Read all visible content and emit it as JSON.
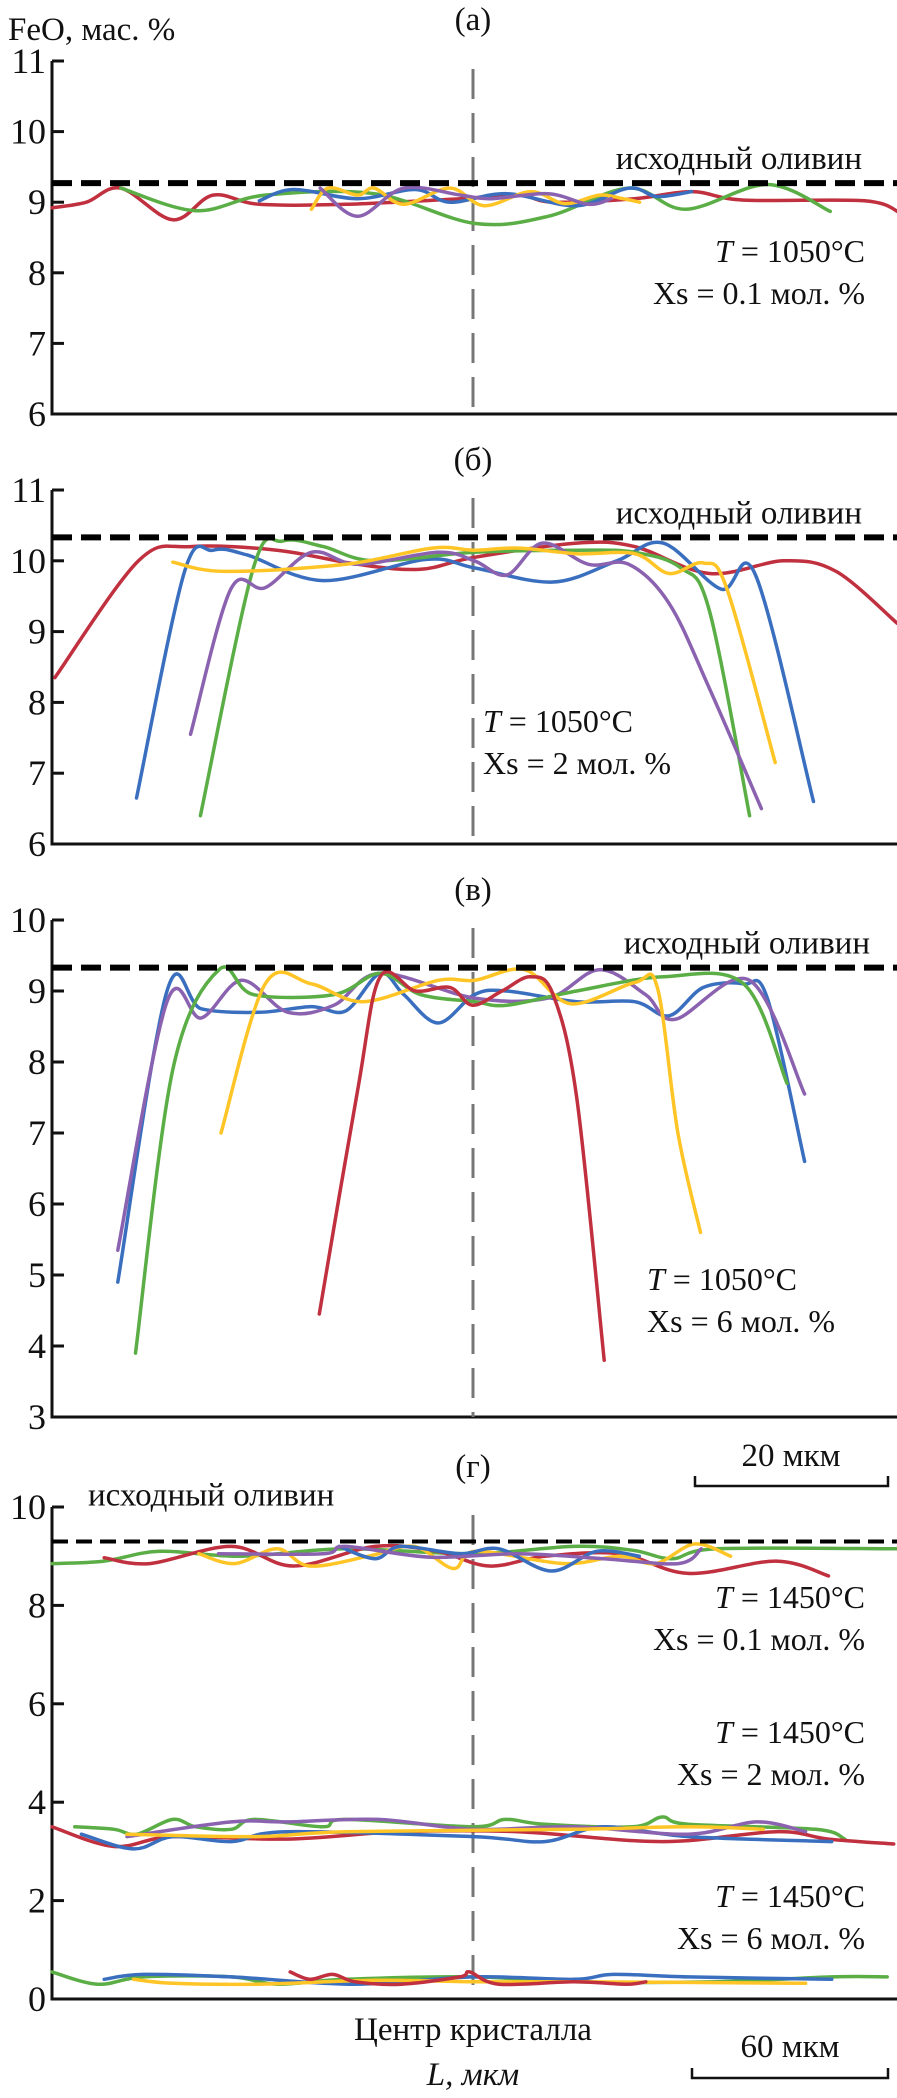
{
  "figure": {
    "ylabel": "FeO, мас. %",
    "center_label": "Центр кристалла",
    "xlabel": "L, мкм",
    "scale_bar_abc": "20 мкм",
    "scale_bar_d": "60 мкм"
  },
  "chart_data": [
    {
      "type": "line",
      "panel": "(а)",
      "ylim": [
        6,
        11
      ],
      "yticks": [
        "6",
        "7",
        "8",
        "9",
        "10",
        "11"
      ],
      "xlim": [
        -43,
        43
      ],
      "x_unit": "мкм",
      "reference": {
        "value": 9.27,
        "label": "исходный оливин"
      },
      "annotations": [
        {
          "t_symbol": "T",
          "t_value": " = 1050°C",
          "xs": "Xs = 0.1 мол. %"
        }
      ],
      "series": [
        {
          "name": "red",
          "color": "#c0303f",
          "x": [
            -43,
            -39.5,
            -36,
            -30.7,
            -26.6,
            -21.9,
            -13.1,
            -1.4,
            4.5,
            8.0,
            16.3,
            22.1,
            27.4,
            39.7,
            43.3
          ],
          "y": [
            8.92,
            9.0,
            9.2,
            8.75,
            9.1,
            8.97,
            8.97,
            9.05,
            9.1,
            9.0,
            9.05,
            9.15,
            9.03,
            9.02,
            8.85
          ]
        },
        {
          "name": "green",
          "color": "#5aae45",
          "x": [
            -36,
            -28.4,
            -21.3,
            -10.2,
            0,
            7.5,
            15.7,
            21.5,
            29.8,
            36.2
          ],
          "y": [
            9.2,
            8.88,
            9.1,
            9.12,
            8.7,
            8.8,
            9.2,
            8.9,
            9.25,
            8.87
          ]
        },
        {
          "name": "blue",
          "color": "#3a6fbf",
          "x": [
            -21.9,
            -18.4,
            -11.9,
            -6.0,
            -2.5,
            3.3,
            10.4,
            15.7,
            18.6,
            22.1
          ],
          "y": [
            9.02,
            9.18,
            9.05,
            9.18,
            9.0,
            9.12,
            8.95,
            9.2,
            9.08,
            9.15
          ]
        },
        {
          "name": "yellow",
          "color": "#ffc425",
          "x": [
            -16.6,
            -14.9,
            -11.9,
            -10.2,
            -7.2,
            -2.5,
            1.0,
            5.7,
            9.2,
            12.7,
            15.1,
            16.8
          ],
          "y": [
            8.9,
            9.2,
            9.1,
            9.2,
            8.97,
            9.2,
            8.95,
            9.15,
            8.98,
            9.1,
            9.05,
            9.0
          ]
        },
        {
          "name": "purple",
          "color": "#8a62b0",
          "x": [
            -15.7,
            -11.9,
            -7.2,
            -1.4,
            1.6,
            7.5,
            11.6,
            13.9
          ],
          "y": [
            9.2,
            8.8,
            9.2,
            9.1,
            9.05,
            9.12,
            8.97,
            9.05
          ]
        }
      ]
    },
    {
      "type": "line",
      "panel": "(б)",
      "ylim": [
        6,
        11
      ],
      "yticks": [
        "6",
        "7",
        "8",
        "9",
        "10",
        "11"
      ],
      "xlim": [
        -43,
        43
      ],
      "x_unit": "мкм",
      "reference": {
        "value": 10.33,
        "label": "исходный оливин"
      },
      "annotations": [
        {
          "t_symbol": "T",
          "t_value": " = 1050°C",
          "xs": "Xs = 2 мол. %"
        }
      ],
      "series": [
        {
          "name": "red",
          "color": "#c0303f",
          "x": [
            -42.7,
            -34.2,
            -28.9,
            -20.1,
            -11.9,
            -5.5,
            0,
            10.4,
            16.3,
            23.9,
            31.5,
            36.8,
            43.0
          ],
          "y": [
            8.35,
            10.0,
            10.2,
            10.15,
            9.95,
            9.88,
            10.05,
            10.25,
            10.2,
            9.82,
            10.0,
            9.85,
            9.12
          ]
        },
        {
          "name": "blue",
          "color": "#3a6fbf",
          "x": [
            -34.4,
            -29.5,
            -26.6,
            -23.1,
            -15.4,
            -4.9,
            0,
            8.0,
            14.5,
            19.2,
            25.1,
            28.6,
            34.5
          ],
          "y": [
            6.65,
            9.85,
            10.15,
            10.08,
            9.72,
            10.02,
            9.9,
            9.7,
            10.0,
            10.25,
            9.6,
            9.8,
            6.6
          ]
        },
        {
          "name": "green",
          "color": "#5aae45",
          "x": [
            -27.9,
            -22.5,
            -19.5,
            -15.4,
            -10.2,
            0,
            10.4,
            16.3,
            21.0,
            23.9,
            28.0
          ],
          "y": [
            6.4,
            9.9,
            10.28,
            10.2,
            10.0,
            10.12,
            10.15,
            10.12,
            9.9,
            9.3,
            6.4
          ]
        },
        {
          "name": "purple",
          "color": "#8a62b0",
          "x": [
            -28.9,
            -24.8,
            -21.3,
            -16.6,
            -11.9,
            -3.7,
            0,
            3.3,
            6.9,
            11.6,
            15.7,
            19.8,
            23.9,
            29.2
          ],
          "y": [
            7.55,
            9.6,
            9.62,
            10.12,
            9.95,
            10.12,
            10.0,
            9.8,
            10.25,
            9.95,
            9.95,
            9.4,
            8.2,
            6.5
          ]
        },
        {
          "name": "yellow",
          "color": "#ffc425",
          "x": [
            -30.7,
            -25.4,
            -13.1,
            -4.3,
            0,
            4.5,
            10.4,
            16.3,
            19.8,
            23.3,
            25.7,
            30.6
          ],
          "y": [
            9.98,
            9.85,
            9.95,
            10.18,
            10.15,
            10.18,
            10.1,
            10.1,
            9.82,
            9.97,
            9.6,
            7.15
          ]
        }
      ]
    },
    {
      "type": "line",
      "panel": "(в)",
      "ylim": [
        3,
        10
      ],
      "yticks": [
        "3",
        "4",
        "5",
        "6",
        "7",
        "8",
        "9",
        "10"
      ],
      "xlim": [
        -43,
        43
      ],
      "x_unit": "мкм",
      "reference": {
        "value": 9.33,
        "label": "исходный оливин"
      },
      "annotations": [
        {
          "t_symbol": "T",
          "t_value": " = 1050°C",
          "xs": "Xs = 6 мол. %"
        }
      ],
      "series": [
        {
          "name": "blue",
          "color": "#3a6fbf",
          "x": [
            -36.3,
            -31.3,
            -27.8,
            -21.9,
            -16.6,
            -13.1,
            -9.6,
            -7.2,
            -3.7,
            0,
            3.3,
            10.4,
            16.3,
            19.8,
            23.3,
            27.4,
            29.8,
            33.6
          ],
          "y": [
            4.9,
            9.0,
            8.75,
            8.7,
            8.78,
            8.72,
            9.25,
            8.95,
            8.55,
            8.95,
            9.0,
            8.85,
            8.85,
            8.65,
            9.05,
            9.1,
            8.9,
            6.6
          ]
        },
        {
          "name": "purple",
          "color": "#8a62b0",
          "x": [
            -36.3,
            -31.3,
            -27.8,
            -23.7,
            -19.0,
            -14.3,
            -9.6,
            0,
            7.5,
            12.7,
            17.4,
            20.4,
            28.0,
            33.6
          ],
          "y": [
            5.35,
            8.85,
            8.62,
            9.15,
            8.7,
            8.8,
            9.25,
            8.9,
            8.9,
            9.3,
            8.95,
            8.6,
            9.15,
            7.55
          ]
        },
        {
          "name": "green",
          "color": "#5aae45",
          "x": [
            -34.5,
            -30.7,
            -26.0,
            -22.5,
            -14.3,
            -9.6,
            -5.5,
            0,
            3.3,
            10.4,
            19.2,
            27.4,
            31.8
          ],
          "y": [
            3.9,
            7.9,
            9.3,
            8.95,
            8.95,
            9.25,
            8.95,
            8.85,
            8.8,
            9.0,
            9.2,
            9.1,
            7.7
          ]
        },
        {
          "name": "yellow",
          "color": "#ffc425",
          "x": [
            -25.8,
            -21.3,
            -16.6,
            -11.3,
            -3.7,
            0,
            5.1,
            9.8,
            16.3,
            18.6,
            20.7,
            23.0
          ],
          "y": [
            7.0,
            9.1,
            9.1,
            8.85,
            9.15,
            9.15,
            9.3,
            8.82,
            9.12,
            9.05,
            7.0,
            5.6
          ]
        },
        {
          "name": "red",
          "color": "#c0303f",
          "x": [
            -15.8,
            -11.9,
            -9.6,
            -6.0,
            -2.5,
            -0.2,
            2.8,
            5.7,
            8.0,
            10.4,
            13.2
          ],
          "y": [
            4.45,
            7.6,
            9.2,
            9.0,
            9.05,
            8.8,
            9.0,
            9.2,
            8.95,
            7.5,
            3.8
          ]
        }
      ]
    },
    {
      "type": "line",
      "panel": "(г)",
      "ylim": [
        0,
        10
      ],
      "yticks": [
        "0",
        "2",
        "4",
        "6",
        "8",
        "10"
      ],
      "xlim": [
        -129,
        130
      ],
      "x_unit": "мкм",
      "reference": {
        "value": 9.3,
        "label": "исходный оливин"
      },
      "annotations": [
        {
          "t_symbol": "T",
          "t_value": " = 1450°C",
          "xs": "Xs = 0.1 мол. %"
        },
        {
          "t_symbol": "T",
          "t_value": " = 1450°C",
          "xs": "Xs = 2 мол. %"
        },
        {
          "t_symbol": "T",
          "t_value": " = 1450°C",
          "xs": "Xs = 6 мол. %"
        }
      ],
      "series": [
        {
          "name": "green-0.1",
          "color": "#5aae45",
          "x": [
            -129,
            -113,
            -96,
            -71,
            -39,
            0,
            31,
            49,
            61,
            75,
            130
          ],
          "y": [
            8.85,
            8.9,
            9.1,
            9.0,
            9.15,
            9.05,
            9.2,
            9.12,
            8.95,
            9.15,
            9.15
          ]
        },
        {
          "name": "red-0.1",
          "color": "#c0303f",
          "x": [
            -113,
            -99,
            -74,
            -55,
            -30,
            -11,
            5,
            22,
            45,
            66,
            93,
            109
          ],
          "y": [
            8.97,
            8.85,
            9.2,
            8.8,
            9.2,
            9.1,
            8.8,
            9.0,
            9.05,
            8.65,
            8.9,
            8.6
          ]
        },
        {
          "name": "yellow-0.1",
          "color": "#ffc425",
          "x": [
            -84,
            -73,
            -60,
            -50,
            -32,
            -18,
            -6,
            1,
            28,
            45,
            56,
            68,
            79
          ],
          "y": [
            9.05,
            8.85,
            9.15,
            8.8,
            9.0,
            9.2,
            8.75,
            9.1,
            8.85,
            9.0,
            8.85,
            9.25,
            9.0
          ]
        },
        {
          "name": "blue-0.1",
          "color": "#3a6fbf",
          "x": [
            -41,
            -30,
            -22,
            -4,
            8,
            24,
            38,
            51
          ],
          "y": [
            9.2,
            8.95,
            9.2,
            9.05,
            9.15,
            8.7,
            9.1,
            9.0
          ]
        },
        {
          "name": "purple-0.1",
          "color": "#8a62b0",
          "x": [
            -78,
            -46,
            -39,
            -13,
            14,
            40,
            63,
            70
          ],
          "y": [
            9.05,
            9.05,
            9.2,
            8.98,
            9.05,
            8.95,
            8.85,
            9.15
          ]
        },
        {
          "name": "green-2",
          "color": "#5aae45",
          "x": [
            -122,
            -110,
            -103,
            -92,
            -85,
            -74,
            -67,
            -46,
            -39,
            0,
            10,
            22,
            49,
            58,
            66,
            105,
            114
          ],
          "y": [
            3.5,
            3.45,
            3.35,
            3.65,
            3.5,
            3.45,
            3.65,
            3.5,
            3.65,
            3.5,
            3.65,
            3.55,
            3.5,
            3.7,
            3.55,
            3.45,
            3.25
          ]
        },
        {
          "name": "red-2",
          "color": "#c0303f",
          "x": [
            -129,
            -110,
            -92,
            -57,
            -22,
            14,
            58,
            93,
            109,
            129
          ],
          "y": [
            3.5,
            3.1,
            3.3,
            3.25,
            3.4,
            3.4,
            3.2,
            3.4,
            3.25,
            3.15
          ]
        },
        {
          "name": "blue-2",
          "color": "#3a6fbf",
          "x": [
            -120,
            -104,
            -92,
            -74,
            -57,
            0,
            22,
            40,
            66,
            110
          ],
          "y": [
            3.35,
            3.05,
            3.3,
            3.2,
            3.4,
            3.3,
            3.2,
            3.5,
            3.3,
            3.2
          ]
        },
        {
          "name": "purple-2",
          "color": "#8a62b0",
          "x": [
            -106,
            -74,
            -57,
            -29,
            0,
            31,
            66,
            87,
            102
          ],
          "y": [
            3.3,
            3.6,
            3.6,
            3.65,
            3.45,
            3.5,
            3.35,
            3.6,
            3.4
          ]
        },
        {
          "name": "yellow-2",
          "color": "#ffc425",
          "x": [
            -106,
            -66,
            -39,
            31,
            66,
            89
          ],
          "y": [
            3.35,
            3.3,
            3.4,
            3.45,
            3.5,
            3.45
          ]
        },
        {
          "name": "green-6",
          "color": "#5aae45",
          "x": [
            -129,
            -115,
            -101,
            -74,
            -60,
            -39,
            0,
            31,
            75,
            110,
            127
          ],
          "y": [
            0.55,
            0.3,
            0.45,
            0.45,
            0.3,
            0.4,
            0.45,
            0.35,
            0.35,
            0.45,
            0.45
          ]
        },
        {
          "name": "blue-6",
          "color": "#3a6fbf",
          "x": [
            -113,
            -101,
            -74,
            -36,
            0,
            31,
            43,
            66,
            110
          ],
          "y": [
            0.4,
            0.5,
            0.45,
            0.3,
            0.45,
            0.4,
            0.5,
            0.45,
            0.4
          ]
        },
        {
          "name": "yellow-6",
          "color": "#ffc425",
          "x": [
            -104,
            -92,
            -66,
            -30,
            0,
            31,
            102
          ],
          "y": [
            0.4,
            0.32,
            0.3,
            0.38,
            0.35,
            0.35,
            0.32
          ]
        },
        {
          "name": "red-6",
          "color": "#c0303f",
          "x": [
            -56,
            -50,
            -43,
            -36,
            -22,
            -4,
            -1,
            8,
            31,
            47,
            53
          ],
          "y": [
            0.55,
            0.4,
            0.5,
            0.35,
            0.3,
            0.45,
            0.55,
            0.3,
            0.35,
            0.3,
            0.35
          ]
        }
      ]
    }
  ]
}
